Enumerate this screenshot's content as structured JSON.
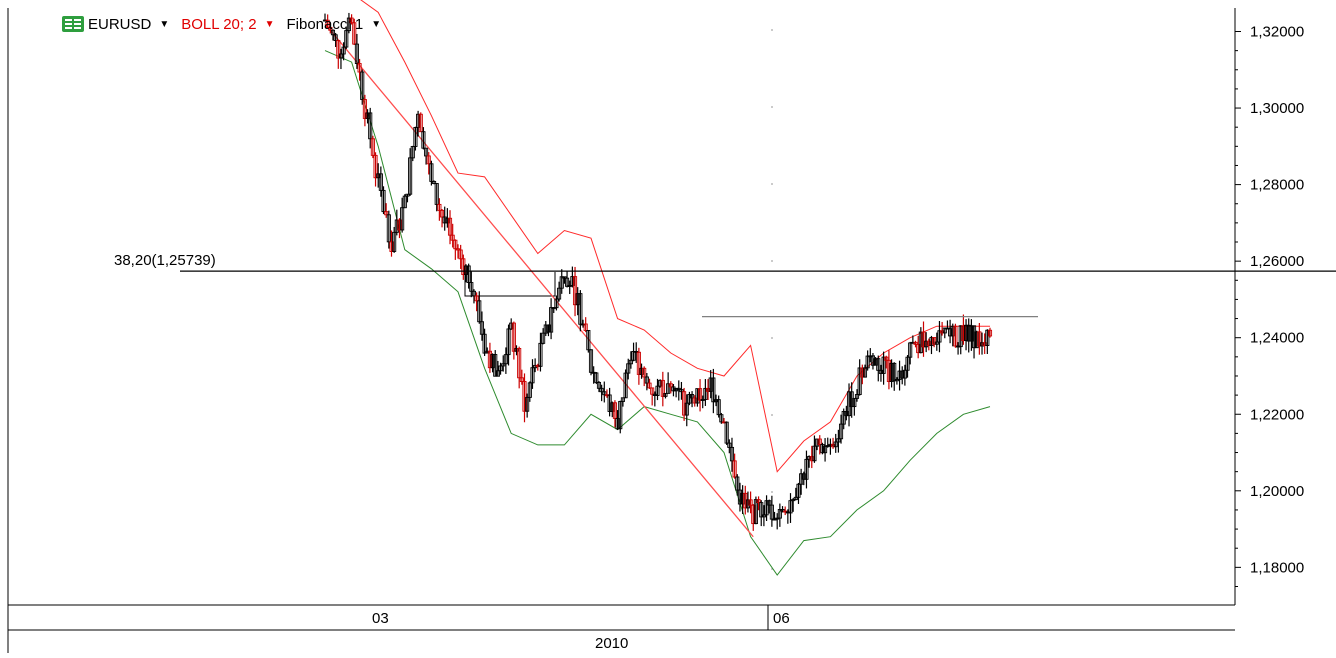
{
  "legend": {
    "symbol": "EURUSD",
    "indicator": "BOLL 20; 2",
    "tool": "Fibonacci 1",
    "symbol_icon": "currency-pair-icon",
    "dropdown_icon": "caret-down-icon"
  },
  "colors": {
    "price_bar": "#000000",
    "price_bar_down": "#cc0000",
    "boll_upper": "#ff2a2a",
    "boll_lower": "#2e8b2e",
    "trendline": "#ff4d4d",
    "fib_level": "#000000",
    "resistance": "#808080",
    "accent_green": "#2e9e3e",
    "indicator_text": "#e00000"
  },
  "fib_label": "38,20(1,25739)",
  "chart_data": {
    "type": "line",
    "title": "",
    "xlabel": "",
    "ylabel": "",
    "ylim": [
      1.17,
      1.325
    ],
    "yticks": [
      "1,32000",
      "1,30000",
      "1,28000",
      "1,26000",
      "1,24000",
      "1,22000",
      "1,20000",
      "1,18000"
    ],
    "ytick_values": [
      1.32,
      1.3,
      1.28,
      1.26,
      1.24,
      1.22,
      1.2,
      1.18
    ],
    "x_period_labels": [
      "03",
      "06"
    ],
    "x_year_label": "2010",
    "grid": false,
    "series": [
      {
        "name": "EURUSD",
        "kind": "price",
        "x": [
          0,
          5,
          10,
          15,
          20,
          25,
          30,
          35,
          40,
          45,
          50,
          55,
          60,
          65,
          70,
          75,
          80,
          85,
          90,
          95,
          100,
          105,
          110,
          115,
          120,
          125,
          130,
          135,
          140,
          145,
          150,
          155,
          160,
          165,
          170,
          175,
          180,
          185,
          190,
          195,
          200,
          205,
          210,
          215,
          220,
          225,
          230,
          235,
          240,
          245,
          250
        ],
        "values": [
          1.323,
          1.315,
          1.322,
          1.3,
          1.28,
          1.265,
          1.275,
          1.3,
          1.28,
          1.27,
          1.262,
          1.255,
          1.238,
          1.23,
          1.242,
          1.223,
          1.235,
          1.245,
          1.258,
          1.25,
          1.232,
          1.225,
          1.218,
          1.237,
          1.228,
          1.226,
          1.23,
          1.222,
          1.224,
          1.228,
          1.218,
          1.2,
          1.194,
          1.196,
          1.194,
          1.198,
          1.205,
          1.212,
          1.21,
          1.22,
          1.228,
          1.235,
          1.232,
          1.23,
          1.236,
          1.24,
          1.239,
          1.24,
          1.241,
          1.24,
          1.239
        ]
      },
      {
        "name": "BOLL upper",
        "kind": "band",
        "x": [
          0,
          10,
          20,
          30,
          40,
          50,
          60,
          70,
          80,
          90,
          100,
          110,
          120,
          130,
          140,
          150,
          160,
          170,
          180,
          190,
          200,
          210,
          220,
          230,
          240,
          250
        ],
        "values": [
          1.332,
          1.33,
          1.325,
          1.312,
          1.298,
          1.283,
          1.282,
          1.272,
          1.262,
          1.268,
          1.266,
          1.245,
          1.242,
          1.236,
          1.232,
          1.23,
          1.238,
          1.205,
          1.213,
          1.218,
          1.23,
          1.236,
          1.24,
          1.243,
          1.243,
          1.243
        ]
      },
      {
        "name": "BOLL lower",
        "kind": "band",
        "x": [
          0,
          10,
          20,
          30,
          40,
          50,
          60,
          70,
          80,
          90,
          100,
          110,
          120,
          130,
          140,
          150,
          160,
          170,
          180,
          190,
          200,
          210,
          220,
          230,
          240,
          250
        ],
        "values": [
          1.315,
          1.312,
          1.29,
          1.263,
          1.258,
          1.252,
          1.232,
          1.215,
          1.212,
          1.212,
          1.22,
          1.216,
          1.222,
          1.22,
          1.218,
          1.21,
          1.188,
          1.178,
          1.187,
          1.188,
          1.195,
          1.2,
          1.208,
          1.215,
          1.22,
          1.222
        ]
      }
    ],
    "annotations": [
      {
        "type": "hline",
        "value": 1.25739,
        "label": "38,20(1,25739)"
      },
      {
        "type": "trendline",
        "from": [
          0,
          1.322
        ],
        "to": [
          161,
          1.188
        ]
      },
      {
        "type": "hline",
        "value": 1.2455,
        "name": "resistance"
      }
    ]
  }
}
